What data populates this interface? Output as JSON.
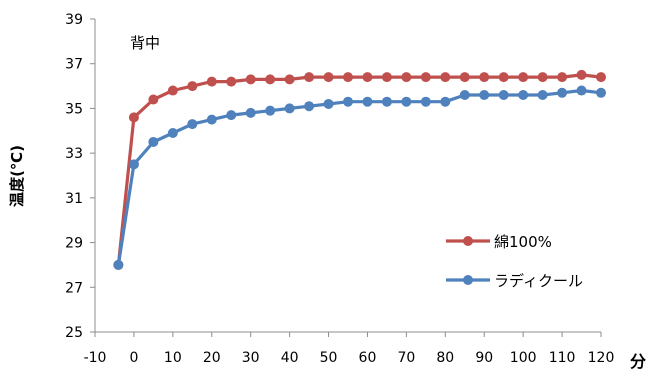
{
  "chart_data": {
    "type": "line",
    "title": "",
    "annotation": "背中",
    "xlabel": "分",
    "ylabel": "温度(℃)",
    "xlim": [
      -10,
      120
    ],
    "ylim": [
      25,
      39
    ],
    "xticks": [
      -10,
      0,
      10,
      20,
      30,
      40,
      50,
      60,
      70,
      80,
      90,
      100,
      110,
      120
    ],
    "yticks": [
      25,
      27,
      29,
      31,
      33,
      35,
      37,
      39
    ],
    "grid": false,
    "legend_position": "lower-right",
    "series": [
      {
        "name": "綿100%",
        "color": "#c0504d",
        "x": [
          -4,
          0,
          5,
          10,
          15,
          20,
          25,
          30,
          35,
          40,
          45,
          50,
          55,
          60,
          65,
          70,
          75,
          80,
          85,
          90,
          95,
          100,
          105,
          110,
          115,
          120
        ],
        "y": [
          28.0,
          34.6,
          35.4,
          35.8,
          36.0,
          36.2,
          36.2,
          36.3,
          36.3,
          36.3,
          36.4,
          36.4,
          36.4,
          36.4,
          36.4,
          36.4,
          36.4,
          36.4,
          36.4,
          36.4,
          36.4,
          36.4,
          36.4,
          36.4,
          36.5,
          36.4
        ]
      },
      {
        "name": "ラディクール",
        "color": "#4f81bd",
        "x": [
          -4,
          0,
          5,
          10,
          15,
          20,
          25,
          30,
          35,
          40,
          45,
          50,
          55,
          60,
          65,
          70,
          75,
          80,
          85,
          90,
          95,
          100,
          105,
          110,
          115,
          120
        ],
        "y": [
          28.0,
          32.5,
          33.5,
          33.9,
          34.3,
          34.5,
          34.7,
          34.8,
          34.9,
          35.0,
          35.1,
          35.2,
          35.3,
          35.3,
          35.3,
          35.3,
          35.3,
          35.3,
          35.6,
          35.6,
          35.6,
          35.6,
          35.6,
          35.7,
          35.8,
          35.7
        ]
      }
    ]
  }
}
